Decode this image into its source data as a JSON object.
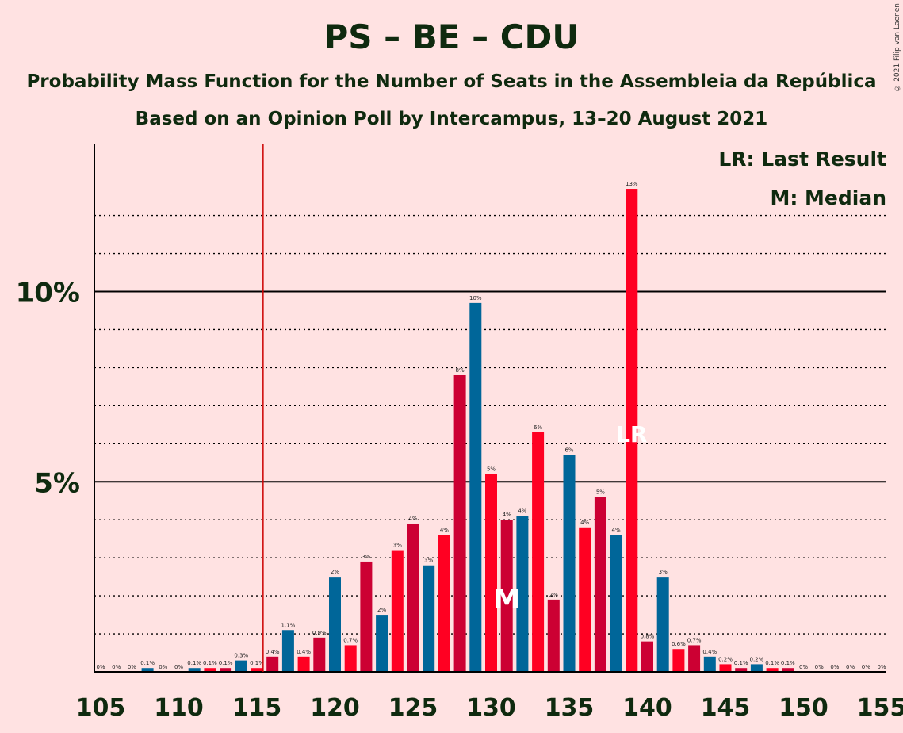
{
  "title": "PS – BE – CDU",
  "subtitle_1": "Probability Mass Function for the Number of Seats in the Assembleia da República",
  "subtitle_2": "Based on an Opinion Poll by Intercampus, 13–20 August 2021",
  "copyright": "© 2021 Filip van Laenen",
  "legend": {
    "last_result": "LR: Last Result",
    "median": "M: Median"
  },
  "colors": {
    "background": "#FFE2E2",
    "blue": "#006699",
    "red": "#FF0022",
    "crimson": "#CC0033",
    "majority_line": "#CC0000",
    "text": "#0F2A0F"
  },
  "chart_data": {
    "type": "bar",
    "x": [
      105,
      106,
      107,
      108,
      109,
      110,
      111,
      112,
      113,
      114,
      115,
      116,
      117,
      118,
      119,
      120,
      121,
      122,
      123,
      124,
      125,
      126,
      127,
      128,
      129,
      130,
      131,
      132,
      133,
      134,
      135,
      136,
      137,
      138,
      139,
      140,
      141,
      142,
      143,
      144,
      145,
      146,
      147,
      148,
      149,
      150,
      151,
      152,
      153,
      154,
      155
    ],
    "values": [
      0,
      0,
      0,
      0.1,
      0,
      0,
      0.1,
      0.1,
      0.1,
      0.3,
      0.1,
      0.4,
      1.1,
      0.4,
      0.9,
      2.5,
      0.7,
      2.9,
      1.5,
      3.2,
      3.9,
      2.8,
      3.6,
      7.8,
      9.7,
      5.2,
      4.0,
      4.1,
      6.3,
      1.9,
      5.7,
      3.8,
      4.6,
      3.6,
      12.7,
      0.8,
      2.5,
      0.6,
      0.7,
      0.4,
      0.2,
      0.1,
      0.2,
      0.1,
      0.1,
      0,
      0,
      0,
      0,
      0,
      0
    ],
    "data_labels": [
      "0%",
      "0%",
      "0%",
      "0.1%",
      "0%",
      "0%",
      "0.1%",
      "0.1%",
      "0.1%",
      "0.3%",
      "0.1%",
      "0.4%",
      "1.1%",
      "0.4%",
      "0.9%",
      "2%",
      "0.7%",
      "3%",
      "2%",
      "3%",
      "4%",
      "3%",
      "4%",
      "8%",
      "10%",
      "5%",
      "4%",
      "4%",
      "6%",
      "2%",
      "6%",
      "4%",
      "5%",
      "4%",
      "13%",
      "0.8%",
      "3%",
      "0.6%",
      "0.7%",
      "0.4%",
      "0.2%",
      "0.1%",
      "0.2%",
      "0.1%",
      "0.1%",
      "0%",
      "0%",
      "0%",
      "0%",
      "0%",
      "0%"
    ],
    "xticks": [
      "105",
      "110",
      "115",
      "120",
      "125",
      "130",
      "135",
      "140",
      "145",
      "150",
      "155"
    ],
    "yticks": [
      "5%",
      "10%"
    ],
    "ylim": [
      0,
      13.85
    ],
    "majority_line_x": 116,
    "median_x": 131,
    "median_label": "M",
    "last_result_x": 139,
    "last_result_label": "LR"
  }
}
